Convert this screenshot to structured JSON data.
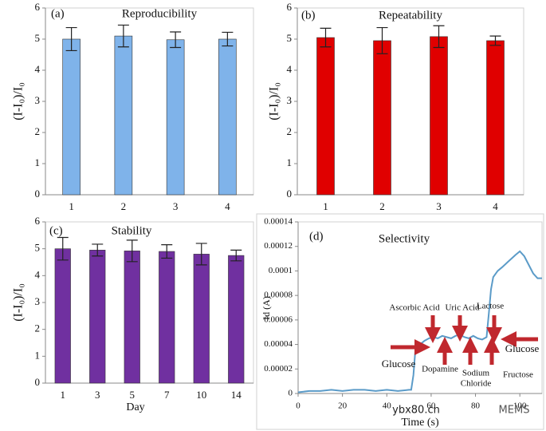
{
  "chart_data": [
    {
      "type": "bar",
      "panel_label": "(a)",
      "title": "Reproducibility",
      "y_label": "(I-I₀)/I₀",
      "categories": [
        "1",
        "2",
        "3",
        "4"
      ],
      "values": [
        5.0,
        5.1,
        4.98,
        5.0
      ],
      "errors": [
        0.37,
        0.35,
        0.25,
        0.22
      ],
      "color": "#7fb3ea",
      "ylim": [
        0,
        6
      ],
      "yticks": [
        0,
        1,
        2,
        3,
        4,
        5,
        6
      ]
    },
    {
      "type": "bar",
      "panel_label": "(b)",
      "title": "Repeatability",
      "y_label": "(I-I₀)/I₀",
      "categories": [
        "1",
        "2",
        "3",
        "4"
      ],
      "values": [
        5.05,
        4.95,
        5.08,
        4.95
      ],
      "errors": [
        0.3,
        0.42,
        0.35,
        0.15
      ],
      "color": "#e00000",
      "ylim": [
        0,
        6
      ],
      "yticks": [
        0,
        1,
        2,
        3,
        4,
        5,
        6
      ]
    },
    {
      "type": "bar",
      "panel_label": "(c)",
      "title": "Stability",
      "y_label": "(I-I₀)/I₀",
      "x_label": "Day",
      "categories": [
        "1",
        "3",
        "5",
        "7",
        "10",
        "14"
      ],
      "values": [
        5.0,
        4.95,
        4.92,
        4.9,
        4.8,
        4.75
      ],
      "errors": [
        0.42,
        0.22,
        0.4,
        0.25,
        0.4,
        0.2
      ],
      "color": "#7030a0",
      "ylim": [
        0,
        6
      ],
      "yticks": [
        0,
        1,
        2,
        3,
        4,
        5,
        6
      ]
    },
    {
      "type": "line",
      "panel_label": "(d)",
      "title": "Selectivity",
      "y_label": "Id (A)",
      "x_label": "Time (s)",
      "x": [
        0,
        5,
        10,
        15,
        20,
        25,
        30,
        35,
        40,
        45,
        50,
        51,
        52,
        53,
        55,
        57,
        59,
        61,
        63,
        65,
        67,
        69,
        71,
        73,
        75,
        77,
        79,
        81,
        83,
        85,
        86,
        87,
        88,
        90,
        92,
        95,
        98,
        100,
        102,
        104,
        106,
        108,
        110
      ],
      "values": [
        1e-06,
        2e-06,
        2e-06,
        3e-06,
        2e-06,
        3e-06,
        3e-06,
        2e-06,
        3e-06,
        2e-06,
        3e-06,
        3e-06,
        1.5e-05,
        3.8e-05,
        4e-05,
        4.3e-05,
        4.5e-05,
        4.6e-05,
        4.5e-05,
        4.7e-05,
        4.6e-05,
        4.5e-05,
        4.7e-05,
        4.8e-05,
        4.6e-05,
        4.5e-05,
        4.7e-05,
        4.5e-05,
        4.4e-05,
        4.6e-05,
        6.5e-05,
        8.5e-05,
        9.5e-05,
        0.0001,
        0.000103,
        0.000108,
        0.000113,
        0.000116,
        0.000112,
        0.000105,
        9.8e-05,
        9.4e-05,
        9.4e-05
      ],
      "color": "#5b9bc8",
      "xlim": [
        0,
        110
      ],
      "xticks": [
        0,
        20,
        40,
        60,
        80,
        100
      ],
      "ylim": [
        0,
        0.00014
      ],
      "yticks": [
        0,
        2e-05,
        4e-05,
        6e-05,
        8e-05,
        0.0001,
        0.00012,
        0.00014
      ],
      "annotations": [
        "Ascorbic Acid",
        "Uric Acid",
        "Lactose",
        "Glucose",
        "Dopamine",
        "Sodium",
        "Chloride",
        "Fructose",
        "Glucose"
      ],
      "watermark": [
        "ybx80.cn",
        "MEMS"
      ]
    }
  ]
}
